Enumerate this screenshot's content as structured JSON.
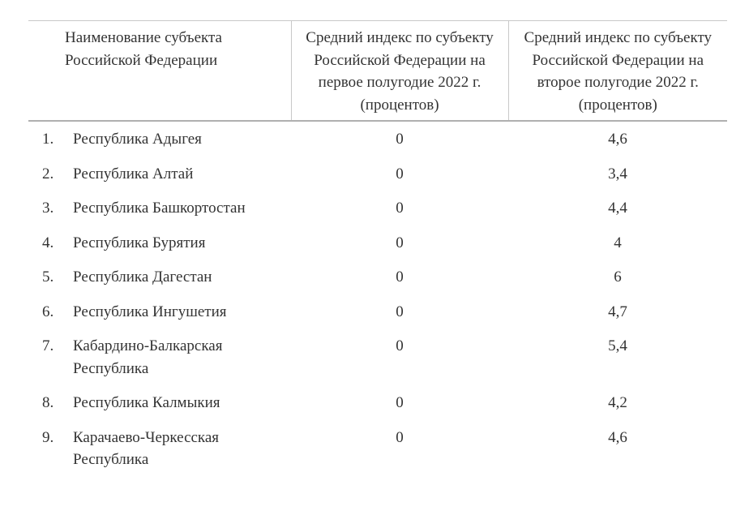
{
  "header": {
    "name": "Наименование субъекта Российской Федерации",
    "h1": "Средний индекс по субъекту Российской Федерации на первое полугодие 2022 г. (процентов)",
    "h2": "Средний индекс по субъекту Российской Федерации на второе полугодие 2022 г. (процентов)"
  },
  "rows": [
    {
      "num": "1.",
      "name": "Республика Адыгея",
      "h1": "0",
      "h2": "4,6"
    },
    {
      "num": "2.",
      "name": "Республика Алтай",
      "h1": "0",
      "h2": "3,4"
    },
    {
      "num": "3.",
      "name": "Республика Башкортостан",
      "h1": "0",
      "h2": "4,4"
    },
    {
      "num": "4.",
      "name": "Республика Бурятия",
      "h1": "0",
      "h2": "4"
    },
    {
      "num": "5.",
      "name": "Республика Дагестан",
      "h1": "0",
      "h2": "6"
    },
    {
      "num": "6.",
      "name": "Республика Ингушетия",
      "h1": "0",
      "h2": "4,7"
    },
    {
      "num": "7.",
      "name": "Кабардино-Балкарская Республика",
      "h1": "0",
      "h2": "5,4"
    },
    {
      "num": "8.",
      "name": "Республика Калмыкия",
      "h1": "0",
      "h2": "4,2"
    },
    {
      "num": "9.",
      "name": "Карачаево-Черкесская Республика",
      "h1": "0",
      "h2": "4,6"
    }
  ]
}
